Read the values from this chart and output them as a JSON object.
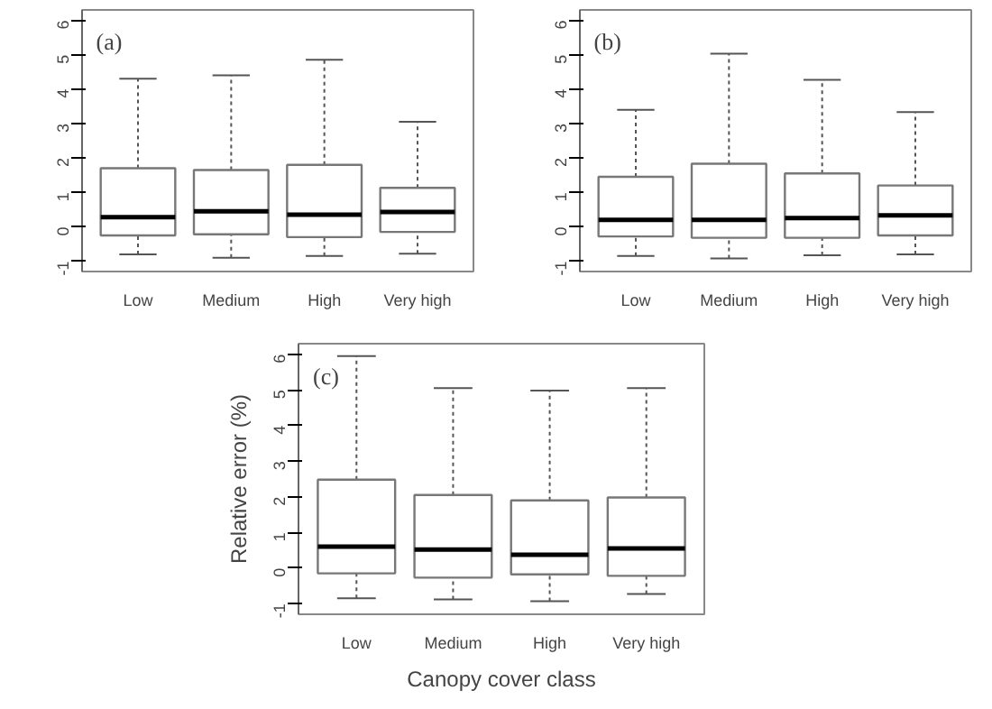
{
  "chart_data": [
    {
      "type": "box",
      "annotations": [
        "(a)"
      ],
      "categories": [
        "Low",
        "Medium",
        "High",
        "Very high"
      ],
      "ylim": [
        -1.3,
        6.3
      ],
      "yticks": [
        -1,
        0,
        1,
        2,
        3,
        4,
        5,
        6
      ],
      "boxes": [
        {
          "low": -0.8,
          "q1": -0.25,
          "median": 0.28,
          "q3": 1.7,
          "high": 4.3
        },
        {
          "low": -0.9,
          "q1": -0.22,
          "median": 0.45,
          "q3": 1.65,
          "high": 4.4
        },
        {
          "low": -0.85,
          "q1": -0.3,
          "median": 0.35,
          "q3": 1.8,
          "high": 4.85
        },
        {
          "low": -0.78,
          "q1": -0.15,
          "median": 0.43,
          "q3": 1.13,
          "high": 3.05
        }
      ]
    },
    {
      "type": "box",
      "annotations": [
        "(b)"
      ],
      "categories": [
        "Low",
        "Medium",
        "High",
        "Very high"
      ],
      "ylim": [
        -1.3,
        6.3
      ],
      "yticks": [
        -1,
        0,
        1,
        2,
        3,
        4,
        5,
        6
      ],
      "boxes": [
        {
          "low": -0.85,
          "q1": -0.28,
          "median": 0.2,
          "q3": 1.45,
          "high": 3.4
        },
        {
          "low": -0.92,
          "q1": -0.32,
          "median": 0.2,
          "q3": 1.83,
          "high": 5.03
        },
        {
          "low": -0.83,
          "q1": -0.32,
          "median": 0.25,
          "q3": 1.55,
          "high": 4.27
        },
        {
          "low": -0.8,
          "q1": -0.25,
          "median": 0.33,
          "q3": 1.2,
          "high": 3.33
        }
      ]
    },
    {
      "type": "box",
      "annotations": [
        "(c)"
      ],
      "xlabel": "Canopy cover class",
      "ylabel": "Relative error (%)",
      "categories": [
        "Low",
        "Medium",
        "High",
        "Very high"
      ],
      "ylim": [
        -1.3,
        6.3
      ],
      "yticks": [
        -1,
        0,
        1,
        2,
        3,
        4,
        5,
        6
      ],
      "boxes": [
        {
          "low": -0.85,
          "q1": -0.15,
          "median": 0.6,
          "q3": 2.48,
          "high": 5.95
        },
        {
          "low": -0.88,
          "q1": -0.27,
          "median": 0.52,
          "q3": 2.05,
          "high": 5.05
        },
        {
          "low": -0.93,
          "q1": -0.18,
          "median": 0.37,
          "q3": 1.9,
          "high": 4.98
        },
        {
          "low": -0.73,
          "q1": -0.22,
          "median": 0.55,
          "q3": 1.98,
          "high": 5.05
        }
      ]
    }
  ]
}
